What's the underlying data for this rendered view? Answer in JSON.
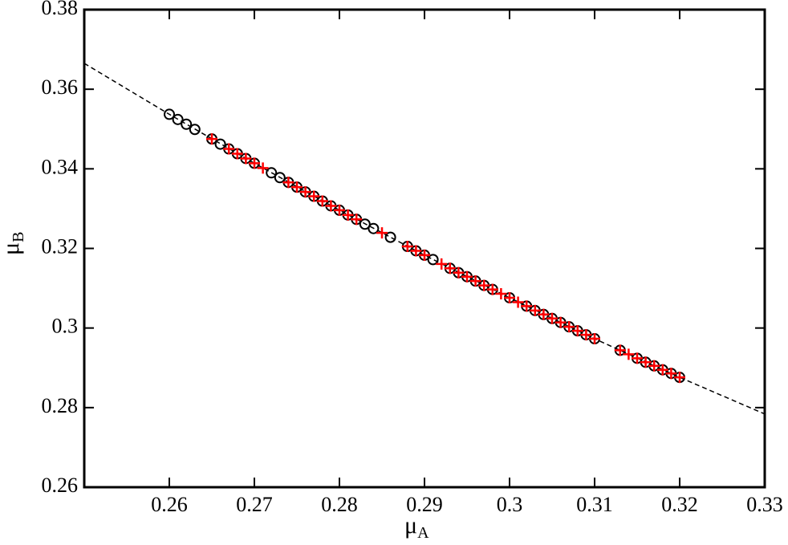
{
  "chart_data": {
    "type": "scatter",
    "x_label": {
      "symbol": "μ",
      "subscript": "A"
    },
    "y_label": {
      "symbol": "μ",
      "subscript": "B"
    },
    "xlim": [
      0.25,
      0.33
    ],
    "xticks": [
      0.26,
      0.27,
      0.28,
      0.29,
      0.3,
      0.31,
      0.32,
      0.33
    ],
    "ylim": [
      0.26,
      0.38
    ],
    "yticks": [
      0.26,
      0.28,
      0.3,
      0.32,
      0.34,
      0.36,
      0.38
    ],
    "series": [
      {
        "marker": "line",
        "style": "dashed",
        "color": "#000000",
        "x": [
          0.25,
          0.26,
          0.27,
          0.28,
          0.29,
          0.3,
          0.31,
          0.32,
          0.33
        ],
        "values": [
          0.3665,
          0.3537,
          0.3414,
          0.3296,
          0.3183,
          0.3076,
          0.2973,
          0.2876,
          0.2784
        ]
      },
      {
        "marker": "circle",
        "color": "#000000",
        "x": [
          0.26,
          0.261,
          0.262,
          0.263,
          0.265,
          0.266,
          0.267,
          0.268,
          0.269,
          0.27,
          0.272,
          0.273,
          0.274,
          0.275,
          0.276,
          0.277,
          0.278,
          0.279,
          0.28,
          0.281,
          0.282,
          0.283,
          0.284,
          0.286,
          0.288,
          0.289,
          0.29,
          0.291,
          0.293,
          0.294,
          0.295,
          0.296,
          0.297,
          0.298,
          0.3,
          0.302,
          0.303,
          0.304,
          0.305,
          0.306,
          0.307,
          0.308,
          0.309,
          0.31,
          0.313,
          0.315,
          0.316,
          0.317,
          0.318,
          0.319,
          0.32
        ],
        "values": [
          0.3537,
          0.3524,
          0.3512,
          0.3499,
          0.3475,
          0.3462,
          0.345,
          0.3438,
          0.3426,
          0.3414,
          0.339,
          0.3378,
          0.3366,
          0.3354,
          0.3342,
          0.3331,
          0.3319,
          0.3307,
          0.3296,
          0.3284,
          0.3273,
          0.3261,
          0.325,
          0.3228,
          0.3205,
          0.3194,
          0.3183,
          0.3172,
          0.315,
          0.3139,
          0.3129,
          0.3118,
          0.3107,
          0.3097,
          0.3076,
          0.3055,
          0.3044,
          0.3034,
          0.3024,
          0.3014,
          0.3003,
          0.2993,
          0.2983,
          0.2973,
          0.2944,
          0.2924,
          0.2914,
          0.2905,
          0.2895,
          0.2886,
          0.2876
        ]
      },
      {
        "marker": "plus",
        "color": "#ff0000",
        "x": [
          0.265,
          0.267,
          0.268,
          0.269,
          0.27,
          0.271,
          0.274,
          0.275,
          0.276,
          0.277,
          0.278,
          0.279,
          0.28,
          0.281,
          0.282,
          0.285,
          0.288,
          0.289,
          0.29,
          0.292,
          0.293,
          0.294,
          0.295,
          0.296,
          0.297,
          0.298,
          0.299,
          0.3,
          0.301,
          0.302,
          0.303,
          0.304,
          0.305,
          0.306,
          0.307,
          0.308,
          0.309,
          0.31,
          0.313,
          0.314,
          0.315,
          0.316,
          0.317,
          0.318,
          0.319,
          0.32
        ],
        "values": [
          0.3475,
          0.345,
          0.3438,
          0.3426,
          0.3414,
          0.3402,
          0.3366,
          0.3354,
          0.3342,
          0.3331,
          0.3319,
          0.3307,
          0.3296,
          0.3284,
          0.3273,
          0.3239,
          0.3205,
          0.3194,
          0.3183,
          0.3161,
          0.315,
          0.3139,
          0.3129,
          0.3118,
          0.3107,
          0.3097,
          0.3086,
          0.3076,
          0.3065,
          0.3055,
          0.3044,
          0.3034,
          0.3024,
          0.3014,
          0.3003,
          0.2993,
          0.2983,
          0.2973,
          0.2944,
          0.2934,
          0.2924,
          0.2914,
          0.2905,
          0.2895,
          0.2886,
          0.2876
        ]
      }
    ]
  }
}
